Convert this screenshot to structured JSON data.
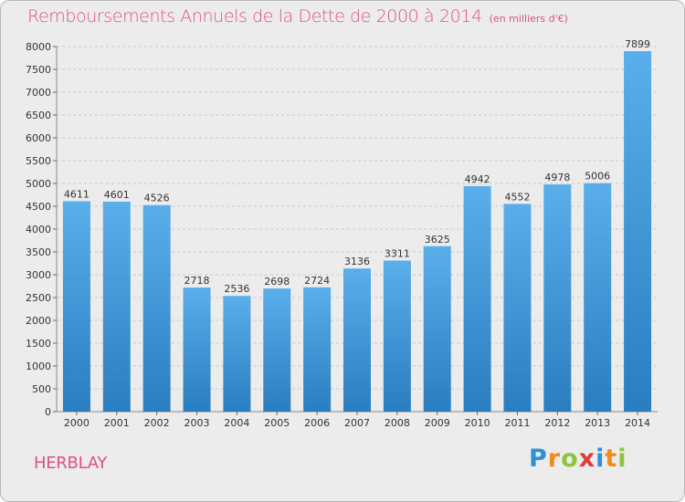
{
  "header": {
    "title": "Remboursements Annuels de la Dette de 2000 à 2014",
    "subtitle": "(en milliers d'€)"
  },
  "footer": {
    "city": "HERBLAY",
    "logo_letters": [
      "P",
      "r",
      "o",
      "x",
      "i",
      "t",
      "i"
    ],
    "logo_colors": [
      "#2f8fd8",
      "#f08a1c",
      "#8cc43c",
      "#e03c3c",
      "#2f8fd8",
      "#f08a1c",
      "#8cc43c"
    ]
  },
  "colors": {
    "bar_light": "#5aaeea",
    "bar_dark": "#2a7ec0",
    "grid": "#c8c8c8",
    "title": "#e05088"
  },
  "chart_data": {
    "type": "bar",
    "title": "Remboursements Annuels de la Dette de 2000 à 2014",
    "subtitle": "(en milliers d'€)",
    "categories": [
      "2000",
      "2001",
      "2002",
      "2003",
      "2004",
      "2005",
      "2006",
      "2007",
      "2008",
      "2009",
      "2010",
      "2011",
      "2012",
      "2013",
      "2014"
    ],
    "values": [
      4611,
      4601,
      4526,
      2718,
      2536,
      2698,
      2724,
      3136,
      3311,
      3625,
      4942,
      4552,
      4978,
      5006,
      7899
    ],
    "ylim": [
      0,
      8000
    ],
    "yticks": [
      0,
      500,
      1000,
      1500,
      2000,
      2500,
      3000,
      3500,
      4000,
      4500,
      5000,
      5500,
      6000,
      6500,
      7000,
      7500,
      8000
    ],
    "grid": true,
    "data_labels": true
  }
}
